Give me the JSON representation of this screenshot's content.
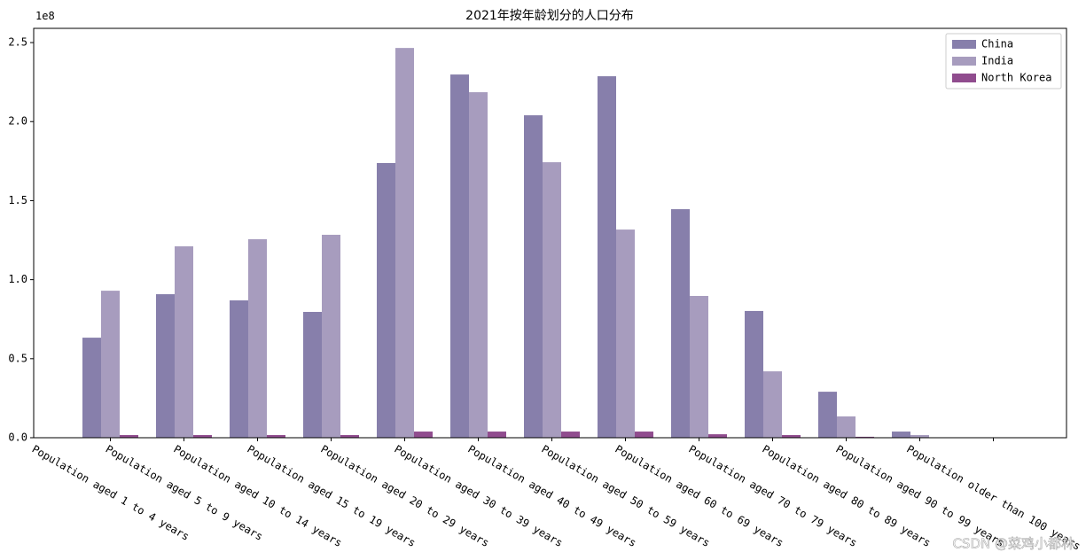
{
  "chart_data": {
    "type": "bar",
    "title": "2021年按年龄划分的人口分布",
    "y_offset_label": "1e8",
    "categories": [
      "Population aged 1 to 4 years",
      "Population aged 5 to 9 years",
      "Population aged 10 to 14 years",
      "Population aged 15 to 19 years",
      "Population aged 20 to 29 years",
      "Population aged 30 to 39 years",
      "Population aged 40 to 49 years",
      "Population aged 50 to 59 years",
      "Population aged 60 to 69 years",
      "Population aged 70 to 79 years",
      "Population aged 80 to 89 years",
      "Population aged 90 to 99 years",
      "Population older than 100 years"
    ],
    "series": [
      {
        "name": "China",
        "color": "#877fab",
        "values": [
          0.633,
          0.908,
          0.869,
          0.796,
          1.738,
          2.298,
          2.04,
          2.287,
          1.446,
          0.802,
          0.291,
          0.039,
          0.001
        ]
      },
      {
        "name": "India",
        "color": "#a79cbe",
        "values": [
          0.93,
          1.211,
          1.256,
          1.284,
          2.466,
          2.186,
          1.743,
          1.317,
          0.897,
          0.42,
          0.135,
          0.017,
          0.001
        ]
      },
      {
        "name": "North Korea",
        "color": "#904c8e",
        "values": [
          0.017,
          0.017,
          0.017,
          0.017,
          0.039,
          0.039,
          0.039,
          0.039,
          0.022,
          0.017,
          0.006,
          0.001,
          0
        ]
      }
    ],
    "ylim": [
      0,
      2.59
    ],
    "yticks": [
      {
        "value": 0,
        "label": "0.0"
      },
      0.5,
      {
        "value": 1,
        "label": "1.0"
      },
      1.5,
      {
        "value": 2,
        "label": "2.0"
      },
      2.5
    ],
    "legend": "upper right",
    "watermark": "CSDN @菜鸡小都林"
  }
}
